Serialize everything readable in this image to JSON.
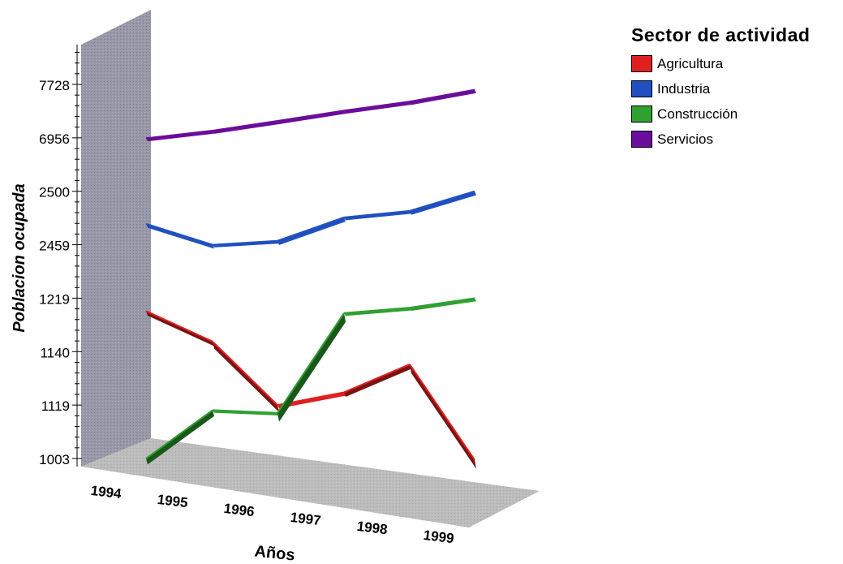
{
  "chart_data": {
    "type": "line",
    "title": "",
    "xlabel": "Años",
    "ylabel": "Poblacion ocupada",
    "categories": [
      "1994",
      "1995",
      "1996",
      "1997",
      "1998",
      "1999"
    ],
    "y_tick_labels": [
      "1003",
      "1119",
      "1140",
      "1219",
      "2459",
      "2500",
      "6956",
      "7728"
    ],
    "legend_title": "Sector de actividad",
    "legend_position": "top-right",
    "three_d": true,
    "series": [
      {
        "name": "Agricultura",
        "color": "#e02020",
        "values": [
          1200,
          1155,
          1119,
          1124,
          1135,
          1000
        ]
      },
      {
        "name": "Industria",
        "color": "#2050c0",
        "values": [
          2475,
          2459,
          2462,
          2480,
          2485,
          2500
        ]
      },
      {
        "name": "Construcción",
        "color": "#30a030",
        "values": [
          1003,
          1108,
          1102,
          1197,
          1205,
          1219
        ]
      },
      {
        "name": "Servicios",
        "color": "#6a0d9a",
        "values": [
          6920,
          7060,
          7200,
          7350,
          7480,
          7650
        ]
      }
    ]
  }
}
